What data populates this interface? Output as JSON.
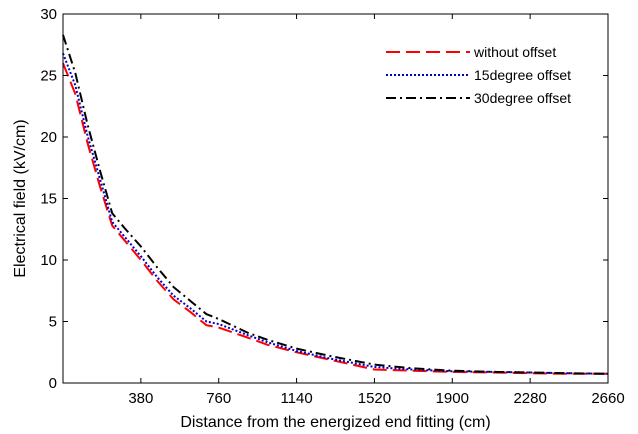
{
  "chart_data": {
    "type": "line",
    "title": "",
    "xlabel": "Distance from the energized end fitting (cm)",
    "ylabel": "Electrical field (kV/cm)",
    "xlim": [
      0,
      2660
    ],
    "ylim": [
      0,
      30
    ],
    "xticks": [
      380,
      760,
      1140,
      1520,
      1900,
      2280,
      2660
    ],
    "yticks": [
      0,
      5,
      10,
      15,
      20,
      25,
      30
    ],
    "grid": false,
    "legend_position": "top-right",
    "series": [
      {
        "name": "without offset",
        "color": "#ff0000",
        "style": "dashed",
        "x": [
          0,
          60,
          120,
          180,
          240,
          300,
          380,
          460,
          540,
          620,
          700,
          760,
          900,
          1000,
          1140,
          1300,
          1520,
          1700,
          1900,
          2100,
          2280,
          2450,
          2660
        ],
        "y": [
          26.0,
          23.5,
          19.5,
          16.0,
          12.8,
          11.6,
          10.0,
          8.3,
          6.8,
          5.8,
          4.7,
          4.5,
          3.7,
          3.1,
          2.5,
          1.9,
          1.1,
          1.0,
          0.9,
          0.85,
          0.8,
          0.75,
          0.75
        ]
      },
      {
        "name": "15degree offset",
        "color": "#0000cc",
        "style": "dotted",
        "x": [
          0,
          60,
          120,
          180,
          240,
          300,
          380,
          460,
          540,
          620,
          700,
          760,
          900,
          1000,
          1140,
          1300,
          1520,
          1700,
          1900,
          2100,
          2280,
          2450,
          2660
        ],
        "y": [
          26.8,
          24.2,
          20.1,
          16.6,
          13.1,
          11.9,
          10.3,
          8.6,
          7.1,
          6.1,
          5.0,
          4.8,
          3.9,
          3.3,
          2.6,
          2.0,
          1.3,
          1.1,
          0.95,
          0.9,
          0.85,
          0.8,
          0.75
        ]
      },
      {
        "name": "30degree offset",
        "color": "#000000",
        "style": "dashdot",
        "x": [
          0,
          60,
          120,
          180,
          240,
          300,
          380,
          460,
          540,
          620,
          700,
          760,
          900,
          1000,
          1140,
          1300,
          1520,
          1700,
          1900,
          2100,
          2280,
          2450,
          2660
        ],
        "y": [
          28.3,
          25.2,
          21.0,
          17.3,
          13.8,
          12.6,
          11.1,
          9.4,
          7.8,
          6.7,
          5.6,
          5.2,
          4.1,
          3.5,
          2.8,
          2.2,
          1.5,
          1.2,
          1.0,
          0.9,
          0.85,
          0.8,
          0.75
        ]
      }
    ]
  }
}
